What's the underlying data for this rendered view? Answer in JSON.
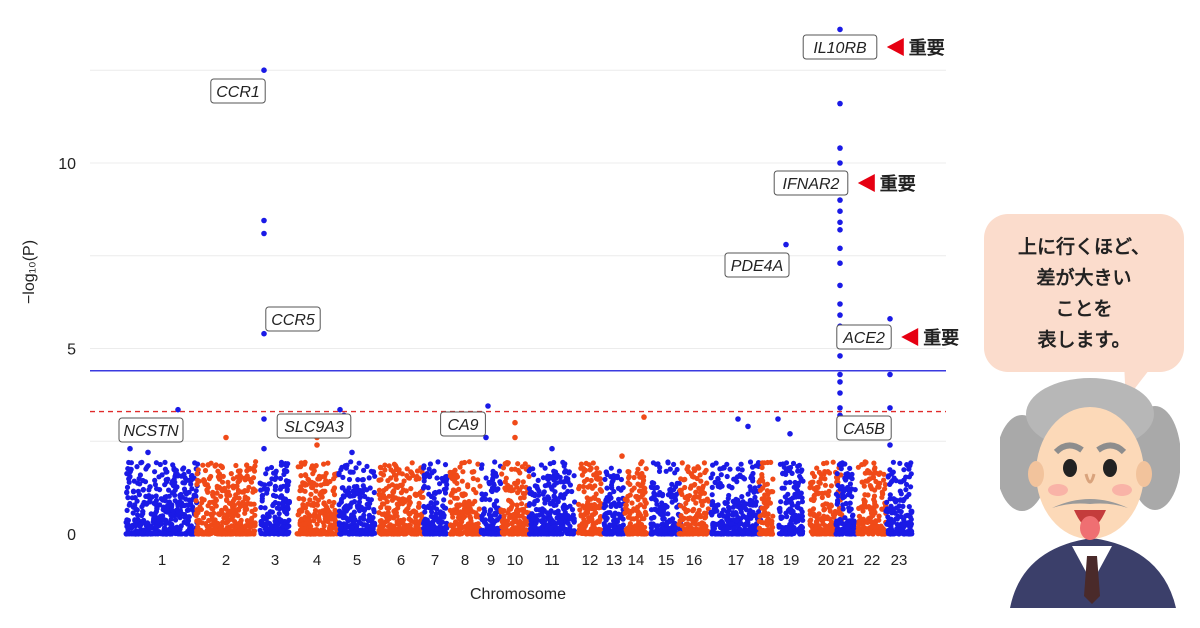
{
  "chart_data": {
    "type": "scatter",
    "subtype": "manhattan",
    "xlabel": "Chromosome",
    "ylabel": "−log₁₀(P)",
    "ylim": [
      0,
      13.8
    ],
    "yticks": [
      0,
      5,
      10
    ],
    "grid": true,
    "colors": {
      "odd": "#1a1ae6",
      "even": "#f04a18",
      "significance_line": "#3a3ae0",
      "suggestive_line": "#e02a2a",
      "arrow": "#e60012"
    },
    "significance_line": 4.4,
    "suggestive_line": 3.3,
    "chromosomes": [
      "1",
      "2",
      "3",
      "4",
      "5",
      "6",
      "7",
      "8",
      "9",
      "10",
      "11",
      "12",
      "13",
      "14",
      "15",
      "16",
      "17",
      "18",
      "19",
      "20",
      "21",
      "22",
      "23"
    ],
    "peaks": [
      {
        "chrom": "1",
        "values": [
          3.35,
          2.3,
          2.2
        ]
      },
      {
        "chrom": "2",
        "values": [
          2.6
        ]
      },
      {
        "chrom": "3",
        "values": [
          12.5,
          8.45,
          8.1,
          5.4,
          3.1,
          2.3
        ]
      },
      {
        "chrom": "4",
        "values": [
          2.6,
          2.4
        ]
      },
      {
        "chrom": "5",
        "values": [
          3.35,
          3.2,
          2.2
        ]
      },
      {
        "chrom": "9",
        "values": [
          3.45,
          2.6
        ]
      },
      {
        "chrom": "10",
        "values": [
          3.0,
          2.6
        ]
      },
      {
        "chrom": "11",
        "values": [
          2.3
        ]
      },
      {
        "chrom": "14",
        "values": [
          3.15,
          2.1
        ]
      },
      {
        "chrom": "17",
        "values": [
          3.1,
          2.9
        ]
      },
      {
        "chrom": "19",
        "values": [
          7.8,
          3.1,
          2.7
        ]
      },
      {
        "chrom": "21",
        "values": [
          13.6,
          11.6,
          10.4,
          10.0,
          9.6,
          9.3,
          9.0,
          8.7,
          8.4,
          8.2,
          7.7,
          7.3,
          6.7,
          6.2,
          5.9,
          5.6,
          5.2,
          4.8,
          4.3,
          4.1,
          3.8,
          3.4,
          3.2,
          2.9
        ]
      },
      {
        "chrom": "23",
        "values": [
          5.8,
          4.3,
          3.4,
          2.4
        ]
      }
    ],
    "annotations": [
      {
        "label": "CCR1",
        "chrom": "3",
        "value": 12.5
      },
      {
        "label": "CCR5",
        "chrom": "3",
        "value": 5.4
      },
      {
        "label": "NCSTN",
        "chrom": "1",
        "value": 3.35
      },
      {
        "label": "SLC9A3",
        "chrom": "5",
        "value": 3.35
      },
      {
        "label": "CA9",
        "chrom": "9",
        "value": 3.45
      },
      {
        "label": "PDE4A",
        "chrom": "19",
        "value": 7.8
      },
      {
        "label": "IL10RB",
        "chrom": "21",
        "value": 13.6,
        "note": "重要"
      },
      {
        "label": "IFNAR2",
        "chrom": "21",
        "value": 9.3,
        "note": "重要"
      },
      {
        "label": "ACE2",
        "chrom": "23",
        "value": 5.8,
        "note": "重要"
      },
      {
        "label": "CA5B",
        "chrom": "23",
        "value": 3.4
      }
    ]
  },
  "speech_bubble": {
    "lines": [
      "上に行くほど、",
      "差が大きい",
      "ことを",
      "表します。"
    ],
    "color": "#fbdccc"
  },
  "character": {
    "description_icon": "einstein-professor-icon"
  }
}
